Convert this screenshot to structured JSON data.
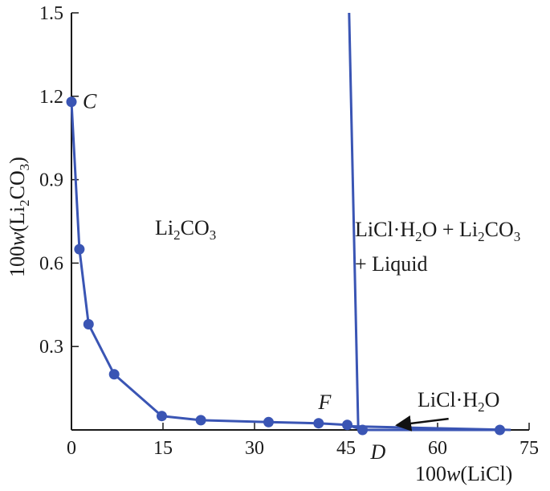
{
  "chart_data": {
    "type": "line",
    "xlabel": {
      "prefix": "100",
      "var": "w",
      "mid": "(LiCl)",
      "post": ""
    },
    "ylabel": {
      "prefix": "100",
      "var": "w",
      "mid": "(Li",
      "sub1": "2",
      "mid2": "CO",
      "sub2": "3",
      "post": ")"
    },
    "xlim": [
      0,
      75
    ],
    "ylim": [
      0,
      1.5
    ],
    "xticks": [
      "0",
      "15",
      "30",
      "45",
      "60",
      "75"
    ],
    "xtick_values": [
      0,
      15,
      30,
      45,
      60,
      75
    ],
    "yticks": [
      "0.3",
      "0.6",
      "0.9",
      "1.2",
      "1.5"
    ],
    "ytick_values": [
      0.3,
      0.6,
      0.9,
      1.2,
      1.5
    ],
    "series": [
      {
        "color": "#3a55b4",
        "markers": true,
        "points": [
          [
            0,
            1.18
          ],
          [
            1.3,
            0.65
          ],
          [
            2.8,
            0.38
          ],
          [
            7,
            0.2
          ],
          [
            14.8,
            0.05
          ],
          [
            21.2,
            0.035
          ],
          [
            32.3,
            0.028
          ],
          [
            40.5,
            0.024
          ],
          [
            45.2,
            0.018
          ],
          [
            47.7,
            0.0
          ],
          [
            70.2,
            0.0
          ]
        ]
      },
      {
        "color": "#3a55b4",
        "markers": false,
        "points": [
          [
            47.0,
            0.0
          ],
          [
            45.5,
            1.5
          ]
        ]
      },
      {
        "color": "#3a55b4",
        "markers": false,
        "points": [
          [
            46.0,
            0.013
          ],
          [
            72.0,
            0.0
          ]
        ]
      }
    ],
    "point_labels": [
      {
        "text": "C",
        "x": 0,
        "y": 1.18
      },
      {
        "text": "F",
        "x": 45.2,
        "y": 0.018
      },
      {
        "text": "D",
        "x": 47.7,
        "y": 0.0
      }
    ],
    "region_labels": {
      "li2co3": {
        "a": "Li",
        "s1": "2",
        "b": "CO",
        "s2": "3"
      },
      "three_phase_line1": {
        "a": "LiCl·H",
        "s1": "2",
        "b": "O + Li",
        "s2": "2",
        "c": "CO",
        "s3": "3"
      },
      "three_phase_line2": "+ Liquid",
      "licl_h2o": {
        "a": "LiCl·H",
        "s1": "2",
        "b": "O"
      }
    },
    "annotation_arrow": {
      "from": [
        61.8,
        0.04
      ],
      "to": [
        53.3,
        0.017
      ]
    }
  }
}
